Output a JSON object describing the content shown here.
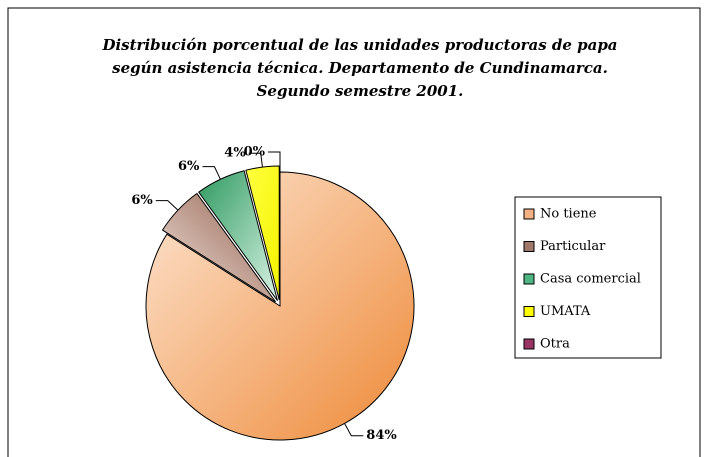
{
  "chart_data": {
    "type": "pie",
    "title": "Distribución porcentual de las unidades productoras de papa según asistencia técnica.  Departamento de Cundinamarca. Segundo semestre 2001.",
    "categories": [
      "No tiene",
      "Particular",
      "Casa comercial",
      "UMATA",
      "Otra"
    ],
    "values": [
      84,
      6,
      6,
      4,
      0
    ],
    "value_labels": [
      "84%",
      "6%",
      "6%",
      "4%",
      "0%"
    ],
    "colors": [
      "#f4b183",
      "#a0786a",
      "#4cb582",
      "#ffff00",
      "#993366"
    ],
    "legend": "right"
  }
}
